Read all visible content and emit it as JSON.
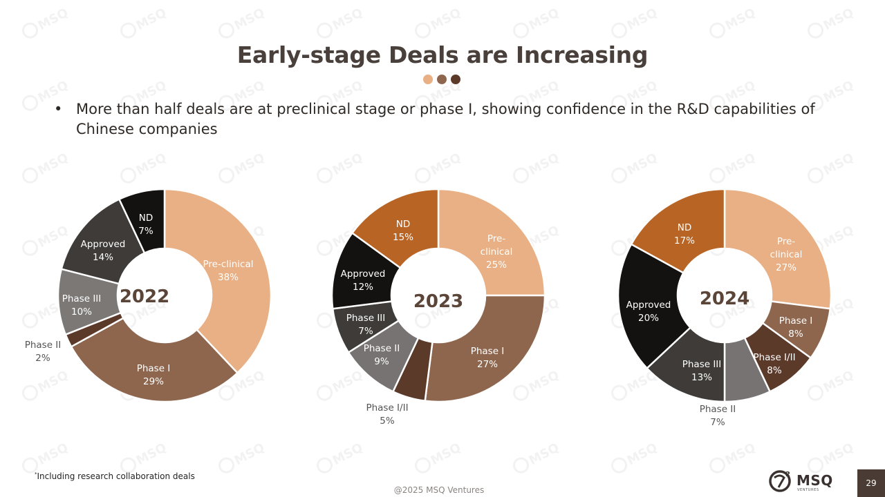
{
  "slide": {
    "title": "Early-stage Deals are Increasing",
    "bullet": "More than half deals are at preclinical stage or phase I, showing confidence in the R&D capabilities of Chinese companies",
    "footnote_marker": "*",
    "footnote": "Including research collaboration deals",
    "copyright": "@2025 MSQ Ventures",
    "page_number": "29",
    "logo_text": "MSQ",
    "logo_subtext": "VENTURES",
    "watermark_text": "MSQ"
  },
  "colors": {
    "preclinical": "#e8b084",
    "phase_i": "#8e664e",
    "phase_ii": "#5c3a2a",
    "phase_i_ii": "#5c3a2a",
    "phase_ii_2023": "#777372",
    "phase_ii_2024": "#777372",
    "phase_iii": "#3e3b38",
    "approved": "#141210",
    "nd_2022": "#141210",
    "nd": "#b86424",
    "approved_2022": "#3e3b38",
    "phase_iii_2022": "#7b7876",
    "dot1": "#e8b084",
    "dot2": "#8e664e",
    "dot3": "#5c3a2a"
  },
  "chart_data": [
    {
      "type": "pie",
      "donut": true,
      "title": "2022",
      "slices": [
        {
          "label": "Pre-clinical",
          "value": 38,
          "display": "38%",
          "color": "#e8b084",
          "text": "#ffffff"
        },
        {
          "label": "Phase I",
          "value": 29,
          "display": "29%",
          "color": "#8e664e",
          "text": "#ffffff"
        },
        {
          "label": "Phase II",
          "value": 2,
          "display": "2%",
          "color": "#5c3a2a",
          "text": "#555555"
        },
        {
          "label": "Phase III",
          "value": 10,
          "display": "10%",
          "color": "#7b7876",
          "text": "#ffffff"
        },
        {
          "label": "Approved",
          "value": 14,
          "display": "14%",
          "color": "#3e3b38",
          "text": "#ffffff"
        },
        {
          "label": "ND",
          "value": 7,
          "display": "7%",
          "color": "#141210",
          "text": "#ffffff"
        }
      ]
    },
    {
      "type": "pie",
      "donut": true,
      "title": "2023",
      "slices": [
        {
          "label": "Pre-clinical",
          "label_lines": [
            "Pre-",
            "clinical"
          ],
          "value": 25,
          "display": "25%",
          "color": "#e8b084",
          "text": "#ffffff"
        },
        {
          "label": "Phase I",
          "value": 27,
          "display": "27%",
          "color": "#8e664e",
          "text": "#ffffff"
        },
        {
          "label": "Phase I/II",
          "value": 5,
          "display": "5%",
          "color": "#5c3a2a",
          "text": "#555555"
        },
        {
          "label": "Phase II",
          "value": 9,
          "display": "9%",
          "color": "#777372",
          "text": "#ffffff"
        },
        {
          "label": "Phase III",
          "value": 7,
          "display": "7%",
          "color": "#3e3b38",
          "text": "#ffffff"
        },
        {
          "label": "Approved",
          "value": 12,
          "display": "12%",
          "color": "#141210",
          "text": "#ffffff"
        },
        {
          "label": "ND",
          "value": 15,
          "display": "15%",
          "color": "#b86424",
          "text": "#ffffff"
        }
      ]
    },
    {
      "type": "pie",
      "donut": true,
      "title": "2024",
      "slices": [
        {
          "label": "Pre-clinical",
          "label_lines": [
            "Pre-",
            "clinical"
          ],
          "value": 27,
          "display": "27%",
          "color": "#e8b084",
          "text": "#ffffff"
        },
        {
          "label": "Phase I",
          "value": 8,
          "display": "8%",
          "color": "#8e664e",
          "text": "#ffffff"
        },
        {
          "label": "Phase I/II",
          "value": 8,
          "display": "8%",
          "color": "#5c3a2a",
          "text": "#ffffff"
        },
        {
          "label": "Phase II",
          "value": 7,
          "display": "7%",
          "color": "#777372",
          "text": "#555555"
        },
        {
          "label": "Phase III",
          "value": 13,
          "display": "13%",
          "color": "#3e3b38",
          "text": "#ffffff"
        },
        {
          "label": "Approved",
          "value": 20,
          "display": "20%",
          "color": "#141210",
          "text": "#ffffff"
        },
        {
          "label": "ND",
          "value": 17,
          "display": "17%",
          "color": "#b86424",
          "text": "#ffffff"
        }
      ]
    }
  ]
}
